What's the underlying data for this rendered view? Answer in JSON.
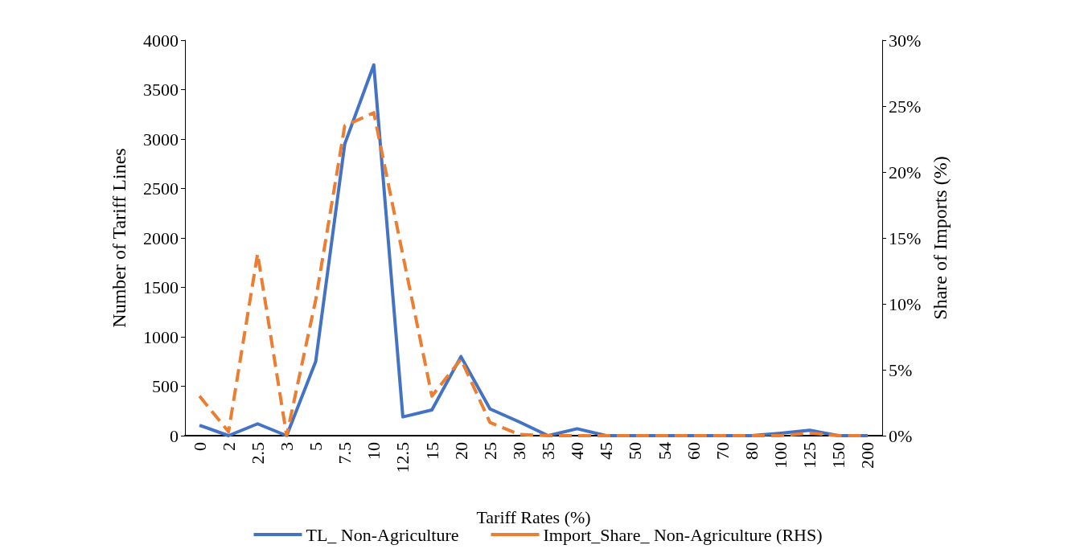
{
  "chart_data": {
    "type": "line",
    "xlabel": "Tariff Rates (%)",
    "ylabel": "Number of Tariff Lines",
    "y2label": "Share of Imports (%)",
    "categories": [
      "0",
      "2",
      "2.5",
      "3",
      "5",
      "7.5",
      "10",
      "12.5",
      "15",
      "20",
      "25",
      "30",
      "35",
      "40",
      "45",
      "50",
      "54",
      "60",
      "70",
      "80",
      "100",
      "125",
      "150",
      "200"
    ],
    "series": [
      {
        "name": "TL_ Non-Agriculture",
        "color": "#4472c4",
        "line_style": "solid",
        "values": [
          105,
          0,
          120,
          0,
          750,
          2950,
          3750,
          190,
          260,
          800,
          270,
          140,
          0,
          70,
          0,
          0,
          0,
          0,
          0,
          0,
          25,
          55,
          0,
          0
        ]
      },
      {
        "name": "Import_Share_ Non-Agriculture (RHS)",
        "color": "#ed7d31",
        "line_style": "dashed",
        "axis": "y2",
        "values": [
          3.0,
          0.3,
          13.8,
          0,
          10.3,
          23.5,
          24.5,
          13.7,
          3.0,
          5.8,
          1.0,
          0.1,
          0,
          0,
          0,
          0,
          0,
          0,
          0,
          0,
          0,
          0.2,
          0,
          0
        ]
      }
    ],
    "ylim": [
      0,
      4000
    ],
    "yticks": [
      0,
      500,
      1000,
      1500,
      2000,
      2500,
      3000,
      3500,
      4000
    ],
    "y2lim": [
      0,
      30
    ],
    "y2ticks": [
      {
        "value": 0,
        "label": "0%"
      },
      {
        "value": 5,
        "label": "5%"
      },
      {
        "value": 10,
        "label": "10%"
      },
      {
        "value": 15,
        "label": "15%"
      },
      {
        "value": 20,
        "label": "20%"
      },
      {
        "value": 25,
        "label": "25%"
      },
      {
        "value": 30,
        "label": "30%"
      }
    ],
    "grid": false,
    "legend": "bottom",
    "marker": "none"
  }
}
